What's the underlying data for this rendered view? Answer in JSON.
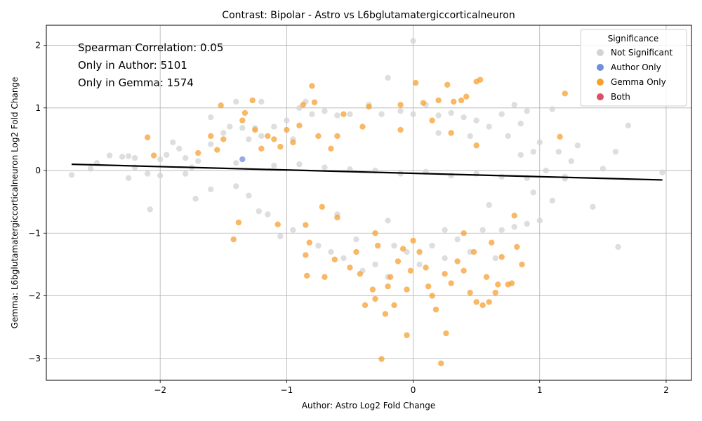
{
  "chart_data": {
    "type": "scatter",
    "title": "Contrast: Bipolar - Astro vs L6bglutamatergiccorticalneuron",
    "xlabel": "Author: Astro Log2 Fold Change",
    "ylabel": "Gemma: L6bglutamatergiccorticalneuron Log2 Fold Change",
    "xlim": [
      -2.9,
      2.2
    ],
    "ylim": [
      -3.35,
      2.32
    ],
    "xticks": [
      -2,
      -1,
      0,
      1,
      2
    ],
    "yticks": [
      -3,
      -2,
      -1,
      0,
      1,
      2
    ],
    "xtick_labels": [
      "−2",
      "−1",
      "0",
      "1",
      "2"
    ],
    "ytick_labels": [
      "−3",
      "−2",
      "−1",
      "0",
      "1",
      "2"
    ],
    "grid": true,
    "legend": {
      "title": "Significance",
      "position": "top-right",
      "entries": [
        {
          "label": "Not Significant",
          "color": "#d3d3d3"
        },
        {
          "label": "Author Only",
          "color": "#6f8fd8"
        },
        {
          "label": "Gemma Only",
          "color": "#f5a031"
        },
        {
          "label": "Both",
          "color": "#dd4f62"
        }
      ]
    },
    "annotations": [
      "Spearman Correlation: 0.05",
      "Only in Author: 5101",
      "Only in Gemma: 1574"
    ],
    "trend_line": {
      "x": [
        -2.7,
        1.97
      ],
      "y": [
        0.1,
        -0.15
      ]
    },
    "series": [
      {
        "name": "Not Significant",
        "color": "#d3d3d3",
        "points": [
          [
            -2.7,
            -0.07
          ],
          [
            -2.55,
            0.03
          ],
          [
            -2.4,
            0.24
          ],
          [
            -2.3,
            0.22
          ],
          [
            -2.25,
            0.23
          ],
          [
            -2.2,
            0.2
          ],
          [
            -2.25,
            -0.12
          ],
          [
            -2.1,
            -0.05
          ],
          [
            -2.08,
            -0.62
          ],
          [
            -2.0,
            -0.08
          ],
          [
            -1.95,
            0.25
          ],
          [
            -1.9,
            0.45
          ],
          [
            -1.85,
            0.35
          ],
          [
            -1.8,
            0.2
          ],
          [
            -1.75,
            0.05
          ],
          [
            -1.72,
            -0.45
          ],
          [
            -1.6,
            0.85
          ],
          [
            -1.6,
            -0.3
          ],
          [
            -1.5,
            0.6
          ],
          [
            -1.45,
            0.7
          ],
          [
            -1.4,
            -0.25
          ],
          [
            -1.4,
            1.1
          ],
          [
            -1.35,
            0.68
          ],
          [
            -1.3,
            0.5
          ],
          [
            -1.25,
            0.68
          ],
          [
            -1.22,
            -0.65
          ],
          [
            -1.2,
            1.1
          ],
          [
            -1.2,
            0.55
          ],
          [
            -1.15,
            -0.7
          ],
          [
            -1.1,
            0.7
          ],
          [
            -1.05,
            -1.05
          ],
          [
            -1.0,
            0.8
          ],
          [
            -0.95,
            -0.95
          ],
          [
            -0.9,
            1.0
          ],
          [
            -0.85,
            1.1
          ],
          [
            -0.8,
            0.9
          ],
          [
            -0.75,
            -1.2
          ],
          [
            -0.7,
            0.95
          ],
          [
            -0.65,
            -1.3
          ],
          [
            -0.6,
            0.88
          ],
          [
            -0.55,
            -1.4
          ],
          [
            -0.5,
            0.9
          ],
          [
            -0.45,
            -1.1
          ],
          [
            -0.4,
            -1.6
          ],
          [
            -0.35,
            1.05
          ],
          [
            -0.3,
            -1.5
          ],
          [
            -0.25,
            0.9
          ],
          [
            -0.2,
            1.48
          ],
          [
            -0.2,
            -1.7
          ],
          [
            -0.15,
            -1.2
          ],
          [
            -0.1,
            0.95
          ],
          [
            -0.05,
            -1.3
          ],
          [
            0.0,
            2.07
          ],
          [
            0.0,
            0.9
          ],
          [
            0.05,
            -1.5
          ],
          [
            0.1,
            1.05
          ],
          [
            0.15,
            -1.2
          ],
          [
            0.2,
            0.88
          ],
          [
            0.25,
            -1.4
          ],
          [
            0.3,
            0.92
          ],
          [
            0.35,
            -1.1
          ],
          [
            0.4,
            0.85
          ],
          [
            0.45,
            -1.3
          ],
          [
            0.5,
            0.8
          ],
          [
            0.55,
            -0.95
          ],
          [
            0.6,
            0.7
          ],
          [
            0.65,
            -1.4
          ],
          [
            0.7,
            0.9
          ],
          [
            0.7,
            -0.95
          ],
          [
            0.75,
            0.55
          ],
          [
            0.8,
            1.05
          ],
          [
            0.8,
            -0.9
          ],
          [
            0.85,
            0.25
          ],
          [
            0.85,
            0.75
          ],
          [
            0.9,
            -0.85
          ],
          [
            0.9,
            0.95
          ],
          [
            0.95,
            0.3
          ],
          [
            1.0,
            -0.8
          ],
          [
            1.05,
            0.0
          ],
          [
            1.1,
            0.98
          ],
          [
            1.1,
            -0.48
          ],
          [
            1.15,
            0.3
          ],
          [
            1.2,
            -0.1
          ],
          [
            1.3,
            0.4
          ],
          [
            1.42,
            -0.58
          ],
          [
            1.5,
            0.03
          ],
          [
            1.6,
            0.3
          ],
          [
            1.62,
            -1.22
          ],
          [
            1.7,
            0.72
          ],
          [
            1.97,
            -0.03
          ],
          [
            -2.5,
            0.12
          ],
          [
            -2.0,
            0.18
          ],
          [
            -1.7,
            0.15
          ],
          [
            -1.4,
            0.12
          ],
          [
            -1.1,
            0.08
          ],
          [
            -0.9,
            0.1
          ],
          [
            -0.7,
            0.05
          ],
          [
            -0.5,
            0.02
          ],
          [
            -0.3,
            0.0
          ],
          [
            -0.1,
            -0.05
          ],
          [
            0.1,
            -0.02
          ],
          [
            0.3,
            -0.08
          ],
          [
            0.5,
            -0.05
          ],
          [
            0.7,
            -0.1
          ],
          [
            0.9,
            -0.12
          ],
          [
            1.2,
            -0.13
          ],
          [
            -1.6,
            0.42
          ],
          [
            -1.3,
            -0.4
          ],
          [
            -0.95,
            0.5
          ],
          [
            0.45,
            0.55
          ],
          [
            0.6,
            -0.55
          ],
          [
            -0.6,
            -0.7
          ],
          [
            0.2,
            0.6
          ],
          [
            -0.2,
            -0.8
          ],
          [
            1.0,
            0.45
          ],
          [
            -1.8,
            -0.05
          ],
          [
            0.95,
            -0.35
          ],
          [
            1.25,
            0.15
          ],
          [
            -2.2,
            0.05
          ],
          [
            0.25,
            -0.95
          ]
        ]
      },
      {
        "name": "Author Only",
        "color": "#6f8fd8",
        "points": [
          [
            -1.35,
            0.18
          ]
        ]
      },
      {
        "name": "Gemma Only",
        "color": "#f5a031",
        "points": [
          [
            -2.1,
            0.53
          ],
          [
            -2.05,
            0.24
          ],
          [
            -1.7,
            0.28
          ],
          [
            -1.6,
            0.55
          ],
          [
            -1.55,
            0.33
          ],
          [
            -1.52,
            1.04
          ],
          [
            -1.5,
            0.5
          ],
          [
            -1.42,
            -1.1
          ],
          [
            -1.38,
            -0.83
          ],
          [
            -1.35,
            0.8
          ],
          [
            -1.33,
            0.92
          ],
          [
            -1.27,
            1.12
          ],
          [
            -1.25,
            0.65
          ],
          [
            -1.2,
            0.35
          ],
          [
            -1.15,
            0.55
          ],
          [
            -1.1,
            0.5
          ],
          [
            -1.07,
            -0.86
          ],
          [
            -1.05,
            0.38
          ],
          [
            -1.0,
            0.65
          ],
          [
            -0.95,
            0.45
          ],
          [
            -0.9,
            0.72
          ],
          [
            -0.87,
            1.05
          ],
          [
            -0.85,
            -0.87
          ],
          [
            -0.85,
            -1.35
          ],
          [
            -0.84,
            -1.68
          ],
          [
            -0.82,
            -1.15
          ],
          [
            -0.8,
            1.35
          ],
          [
            -0.78,
            1.09
          ],
          [
            -0.75,
            0.55
          ],
          [
            -0.72,
            -0.58
          ],
          [
            -0.7,
            -1.7
          ],
          [
            -0.65,
            0.35
          ],
          [
            -0.62,
            -1.42
          ],
          [
            -0.6,
            -0.75
          ],
          [
            -0.55,
            0.9
          ],
          [
            -0.5,
            -1.55
          ],
          [
            -0.45,
            -1.3
          ],
          [
            -0.42,
            -1.65
          ],
          [
            -0.38,
            -2.15
          ],
          [
            -0.35,
            1.02
          ],
          [
            -0.32,
            -1.9
          ],
          [
            -0.3,
            -2.05
          ],
          [
            -0.28,
            -1.2
          ],
          [
            -0.25,
            -3.01
          ],
          [
            -0.22,
            -2.29
          ],
          [
            -0.2,
            -1.85
          ],
          [
            -0.18,
            -1.7
          ],
          [
            -0.15,
            -2.15
          ],
          [
            -0.12,
            -1.45
          ],
          [
            -0.1,
            1.05
          ],
          [
            -0.08,
            -1.25
          ],
          [
            -0.05,
            -2.63
          ],
          [
            -0.05,
            -1.9
          ],
          [
            -0.02,
            -1.6
          ],
          [
            0.0,
            -1.12
          ],
          [
            0.02,
            1.4
          ],
          [
            0.05,
            -1.3
          ],
          [
            0.08,
            1.08
          ],
          [
            0.1,
            -1.55
          ],
          [
            0.12,
            -1.85
          ],
          [
            0.15,
            -2.0
          ],
          [
            0.18,
            -2.22
          ],
          [
            0.2,
            1.12
          ],
          [
            0.22,
            -3.08
          ],
          [
            0.25,
            -1.65
          ],
          [
            0.26,
            -2.6
          ],
          [
            0.27,
            1.37
          ],
          [
            0.3,
            -1.8
          ],
          [
            0.32,
            1.1
          ],
          [
            0.35,
            -1.45
          ],
          [
            0.38,
            1.12
          ],
          [
            0.4,
            -1.6
          ],
          [
            0.42,
            1.18
          ],
          [
            0.45,
            -1.95
          ],
          [
            0.48,
            -1.3
          ],
          [
            0.5,
            1.42
          ],
          [
            0.5,
            -2.1
          ],
          [
            0.53,
            1.45
          ],
          [
            0.55,
            -2.15
          ],
          [
            0.58,
            -1.7
          ],
          [
            0.6,
            -2.1
          ],
          [
            0.62,
            -1.15
          ],
          [
            0.65,
            -1.95
          ],
          [
            0.67,
            -1.82
          ],
          [
            0.7,
            -1.38
          ],
          [
            0.75,
            -1.82
          ],
          [
            0.78,
            -1.8
          ],
          [
            0.8,
            -0.72
          ],
          [
            0.82,
            -1.22
          ],
          [
            0.86,
            -1.5
          ],
          [
            1.16,
            0.54
          ],
          [
            1.2,
            1.23
          ],
          [
            0.3,
            0.6
          ],
          [
            -0.4,
            0.7
          ],
          [
            0.15,
            0.8
          ],
          [
            -0.1,
            0.65
          ],
          [
            0.5,
            0.4
          ],
          [
            -0.6,
            0.55
          ],
          [
            0.4,
            -1.0
          ],
          [
            -0.3,
            -1.0
          ]
        ]
      },
      {
        "name": "Both",
        "color": "#dd4f62",
        "points": []
      }
    ]
  }
}
